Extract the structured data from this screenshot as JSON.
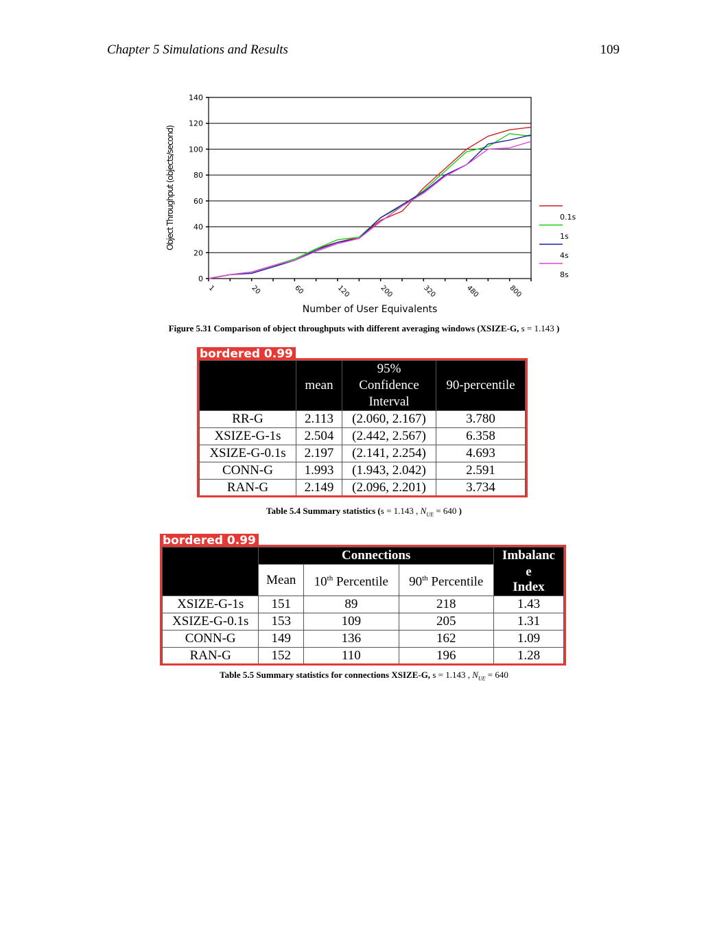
{
  "header": {
    "chapter": "Chapter 5 Simulations and Results",
    "page_number": "109"
  },
  "figure": {
    "caption_text": "Figure 5.31 Comparison of object throughputs with different averaging windows (XSIZE-G, ",
    "caption_math": "s  = 1.143 ",
    "caption_end": ")"
  },
  "chart_data": {
    "type": "line",
    "title": "",
    "xlabel": "Number of User Equivalents",
    "ylabel": "Object Throughput (objects/second)",
    "ylim": [
      0,
      140
    ],
    "yticks": [
      0,
      20,
      40,
      60,
      80,
      100,
      120,
      140
    ],
    "xtick_labels": [
      "1",
      "20",
      "60",
      "120",
      "200",
      "320",
      "480",
      "800"
    ],
    "grid": true,
    "legend_position": "right",
    "legend": [
      "0.1s",
      "1s",
      "4s",
      "8s"
    ],
    "series": [
      {
        "name": "0.1s",
        "color": "#cc2222",
        "values": [
          0,
          3,
          5,
          10,
          15,
          23,
          28,
          32,
          45,
          52,
          70,
          85,
          100,
          110,
          115,
          117
        ]
      },
      {
        "name": "1s",
        "color": "#22cc22",
        "values": [
          0,
          3,
          5,
          10,
          15,
          23,
          30,
          32,
          47,
          56,
          68,
          83,
          98,
          102,
          112,
          110
        ]
      },
      {
        "name": "4s",
        "color": "#22229a",
        "values": [
          0,
          3,
          4,
          9,
          14,
          22,
          28,
          31,
          47,
          57,
          67,
          80,
          88,
          104,
          107,
          111
        ]
      },
      {
        "name": "8s",
        "color": "#dd44dd",
        "values": [
          0,
          3,
          5,
          10,
          14,
          21,
          27,
          31,
          44,
          56,
          66,
          79,
          88,
          100,
          101,
          106
        ]
      }
    ]
  },
  "detections": {
    "t4_label": "bordered  0.99",
    "t5_label": "bordered  0.99"
  },
  "table4": {
    "header": {
      "mean": "mean",
      "ci_line1": "95%",
      "ci_line2": "Confidence",
      "ci_line3": "Interval",
      "percentile": "90-percentile"
    },
    "rows": [
      {
        "name": "RR-G",
        "mean": "2.113",
        "ci": "(2.060, 2.167)",
        "p90": "3.780"
      },
      {
        "name": "XSIZE-G-1s",
        "mean": "2.504",
        "ci": "(2.442, 2.567)",
        "p90": "6.358"
      },
      {
        "name": "XSIZE-G-0.1s",
        "mean": "2.197",
        "ci": "(2.141, 2.254)",
        "p90": "4.693"
      },
      {
        "name": "CONN-G",
        "mean": "1.993",
        "ci": "(1.943, 2.042)",
        "p90": "2.591"
      },
      {
        "name": "RAN-G",
        "mean": "2.149",
        "ci": "(2.096, 2.201)",
        "p90": "3.734"
      }
    ],
    "caption_text": "Table 5.4 Summary statistics (",
    "caption_math1": "s  = 1.143 , ",
    "caption_N": "N",
    "caption_sub": "UE",
    "caption_math2": " = 640 ",
    "caption_end": ")"
  },
  "table5": {
    "header": {
      "group": "Connections",
      "imb1": "Imbalanc",
      "imb2": "e",
      "imb3": "Index",
      "mean": "Mean",
      "p10_num": "10",
      "p10_sup": "th",
      "p10_rest": " Percentile",
      "p90_num": "90",
      "p90_sup": "th",
      "p90_rest": " Percentile"
    },
    "rows": [
      {
        "name": "XSIZE-G-1s",
        "mean": "151",
        "p10": "89",
        "p90": "218",
        "imb": "1.43"
      },
      {
        "name": "XSIZE-G-0.1s",
        "mean": "153",
        "p10": "109",
        "p90": "205",
        "imb": "1.31"
      },
      {
        "name": "CONN-G",
        "mean": "149",
        "p10": "136",
        "p90": "162",
        "imb": "1.09"
      },
      {
        "name": "RAN-G",
        "mean": "152",
        "p10": "110",
        "p90": "196",
        "imb": "1.28"
      }
    ],
    "caption_text": "Table 5.5 Summary statistics for connections XSIZE-G, ",
    "caption_math1": "s  = 1.143 ,  ",
    "caption_N": "N",
    "caption_sub": "UE",
    "caption_math2": " = 640"
  }
}
